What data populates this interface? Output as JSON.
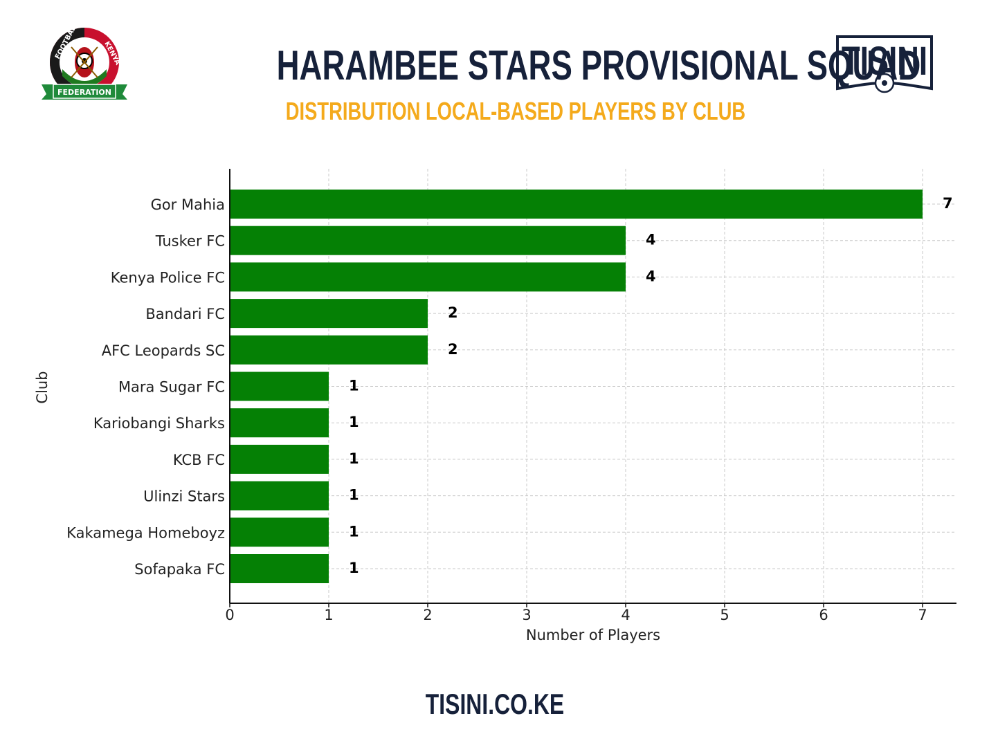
{
  "header": {
    "title": "HARAMBEE STARS PROVISIONAL SQUAD",
    "subtitle": "DISTRIBUTION  LOCAL-BASED PLAYERS BY CLUB"
  },
  "logos": {
    "ffk": {
      "top_text": "FOOTBALL",
      "side_text": "KENYA",
      "banner_text": "FEDERATION"
    },
    "tisini": {
      "text": "TISINI"
    }
  },
  "footer": {
    "site": "TISINI.CO.KE"
  },
  "colors": {
    "bar": "#058005",
    "title": "#16213a",
    "subtitle": "#f4aa1c",
    "grid": "#c8c8c8"
  },
  "chart_data": {
    "type": "bar",
    "orientation": "horizontal",
    "categories": [
      "Gor Mahia",
      "Tusker FC",
      "Kenya Police FC",
      "Bandari FC",
      "AFC Leopards SC",
      "Mara Sugar FC",
      "Kariobangi Sharks",
      "KCB FC",
      "Ulinzi Stars",
      "Kakamega Homeboyz",
      "Sofapaka FC"
    ],
    "values": [
      7,
      4,
      4,
      2,
      2,
      1,
      1,
      1,
      1,
      1,
      1
    ],
    "xlabel": "Number of Players",
    "ylabel": "Club",
    "xlim": [
      0,
      7.35
    ],
    "xticks": [
      0,
      1,
      2,
      3,
      4,
      5,
      6,
      7
    ],
    "grid": true,
    "data_labels": true
  }
}
